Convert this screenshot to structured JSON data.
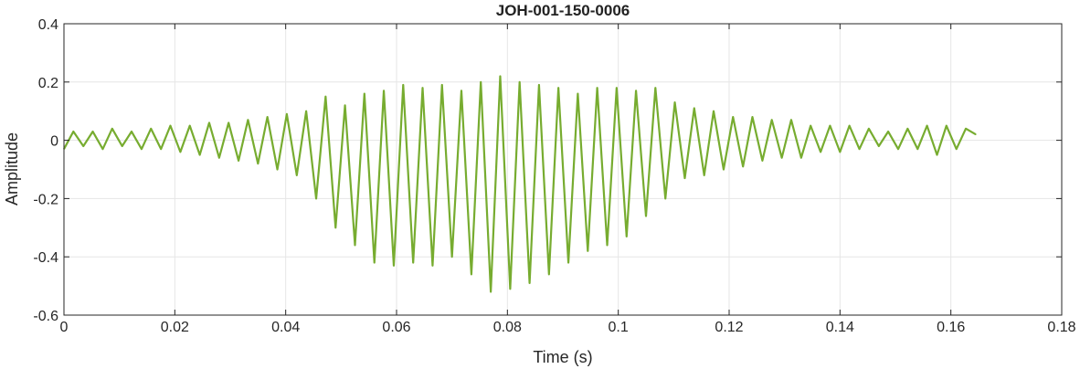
{
  "chart_data": {
    "type": "line",
    "title": "JOH-001-150-0006",
    "xlabel": "Time (s)",
    "ylabel": "Amplitude",
    "xlim": [
      0,
      0.18
    ],
    "ylim": [
      -0.6,
      0.4
    ],
    "xticks": [
      "0",
      "0.02",
      "0.04",
      "0.06",
      "0.08",
      "0.1",
      "0.12",
      "0.14",
      "0.16",
      "0.18"
    ],
    "yticks": [
      "0.4",
      "0.2",
      "0",
      "-0.2",
      "-0.4",
      "-0.6"
    ],
    "grid": true,
    "series": [
      {
        "color": "#77ac30",
        "x": [
          0,
          0.0017,
          0.0035,
          0.0052,
          0.007,
          0.0087,
          0.0105,
          0.0122,
          0.014,
          0.0157,
          0.0175,
          0.0192,
          0.021,
          0.0227,
          0.0245,
          0.0262,
          0.028,
          0.0297,
          0.0315,
          0.0332,
          0.035,
          0.0367,
          0.0385,
          0.0402,
          0.042,
          0.0437,
          0.0455,
          0.0472,
          0.049,
          0.0507,
          0.0525,
          0.0542,
          0.056,
          0.0577,
          0.0595,
          0.0612,
          0.063,
          0.0647,
          0.0665,
          0.0682,
          0.07,
          0.0717,
          0.0735,
          0.0752,
          0.077,
          0.0787,
          0.0805,
          0.0822,
          0.084,
          0.0857,
          0.0875,
          0.0892,
          0.091,
          0.0927,
          0.0945,
          0.0962,
          0.098,
          0.0997,
          0.1015,
          0.1032,
          0.105,
          0.1067,
          0.1085,
          0.1102,
          0.112,
          0.1137,
          0.1155,
          0.1172,
          0.119,
          0.1207,
          0.1225,
          0.1242,
          0.126,
          0.1277,
          0.1295,
          0.1312,
          0.133,
          0.1347,
          0.1365,
          0.1382,
          0.14,
          0.1417,
          0.1435,
          0.1452,
          0.147,
          0.1487,
          0.1505,
          0.1522,
          0.154,
          0.1557,
          0.1575,
          0.1592,
          0.161,
          0.1627,
          0.1645
        ],
        "y": [
          -0.03,
          0.03,
          -0.02,
          0.03,
          -0.03,
          0.04,
          -0.02,
          0.03,
          -0.03,
          0.04,
          -0.03,
          0.05,
          -0.04,
          0.05,
          -0.05,
          0.06,
          -0.06,
          0.06,
          -0.07,
          0.07,
          -0.08,
          0.08,
          -0.1,
          0.09,
          -0.12,
          0.1,
          -0.2,
          0.15,
          -0.3,
          0.12,
          -0.36,
          0.16,
          -0.42,
          0.17,
          -0.43,
          0.19,
          -0.42,
          0.18,
          -0.43,
          0.19,
          -0.4,
          0.17,
          -0.46,
          0.2,
          -0.52,
          0.22,
          -0.51,
          0.2,
          -0.49,
          0.19,
          -0.46,
          0.18,
          -0.42,
          0.16,
          -0.38,
          0.18,
          -0.36,
          0.18,
          -0.33,
          0.17,
          -0.26,
          0.18,
          -0.2,
          0.13,
          -0.13,
          0.11,
          -0.12,
          0.1,
          -0.1,
          0.08,
          -0.09,
          0.08,
          -0.07,
          0.07,
          -0.06,
          0.07,
          -0.06,
          0.05,
          -0.04,
          0.05,
          -0.04,
          0.05,
          -0.03,
          0.04,
          -0.02,
          0.03,
          -0.03,
          0.04,
          -0.03,
          0.05,
          -0.05,
          0.05,
          -0.03,
          0.04,
          0.02
        ]
      }
    ]
  }
}
